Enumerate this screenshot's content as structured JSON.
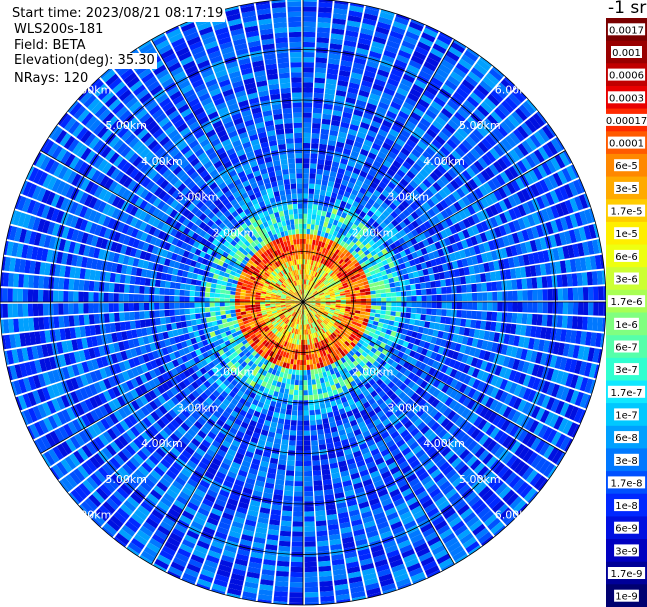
{
  "header": {
    "start_time": "Start time: 2023/08/21 08:17:19",
    "instrument": "WLS200s-181",
    "field": "Field: BETA",
    "elevation": "Elevation(deg): 35.30",
    "nrays": "NRays: 120"
  },
  "chart_data": {
    "type": "heatmap",
    "projection": "polar-ppi",
    "field": "BETA",
    "elevation_deg": 35.3,
    "n_rays": 120,
    "range_rings_km": [
      1,
      2,
      3,
      4,
      5,
      6
    ],
    "range_ring_labels": [
      "2.00km",
      "3.00km",
      "4.00km",
      "5.00km",
      "6.00km"
    ],
    "spoke_angles_deg": [
      0,
      30,
      60,
      90,
      120,
      150,
      180,
      210,
      240,
      270,
      300,
      330
    ],
    "colorbar": {
      "unit_label": "-1 sr",
      "ticks": [
        "0.0017",
        "0.001",
        "0.0006",
        "0.0003",
        "0.00017",
        "0.0001",
        "6e-5",
        "3e-5",
        "1.7e-5",
        "1e-5",
        "6e-6",
        "3e-6",
        "1.7e-6",
        "1e-6",
        "6e-7",
        "3e-7",
        "1.7e-7",
        "1e-7",
        "6e-8",
        "3e-8",
        "1.7e-8",
        "1e-8",
        "6e-9",
        "3e-9",
        "1.7e-9",
        "1e-9"
      ],
      "colors": [
        "#7a0000",
        "#990000",
        "#c00000",
        "#e80000",
        "#ff2a00",
        "#ff5a00",
        "#ff8800",
        "#ffaa00",
        "#ffcc00",
        "#ffee00",
        "#eeff10",
        "#ccff33",
        "#a8ff55",
        "#80ff80",
        "#55ffaa",
        "#30ffd0",
        "#10e8ff",
        "#00c8ff",
        "#00a0ff",
        "#0078ff",
        "#0050ff",
        "#0028ff",
        "#0010e0",
        "#0000c0",
        "#000098",
        "#000070"
      ]
    },
    "regions": [
      {
        "range_km": [
          0.0,
          0.8
        ],
        "level": "1e-5 to 6e-5",
        "note": "near-field noisy"
      },
      {
        "range_km": [
          0.8,
          1.3
        ],
        "level": "6e-5 to 0.0001",
        "note": "red/orange ring"
      },
      {
        "range_km": [
          1.3,
          1.9
        ],
        "level": "1e-7 to 1e-6",
        "note": "cyan/green"
      },
      {
        "range_km": [
          1.9,
          6.0
        ],
        "level": "1e-8 to 6e-8",
        "note": "blue background"
      }
    ]
  }
}
